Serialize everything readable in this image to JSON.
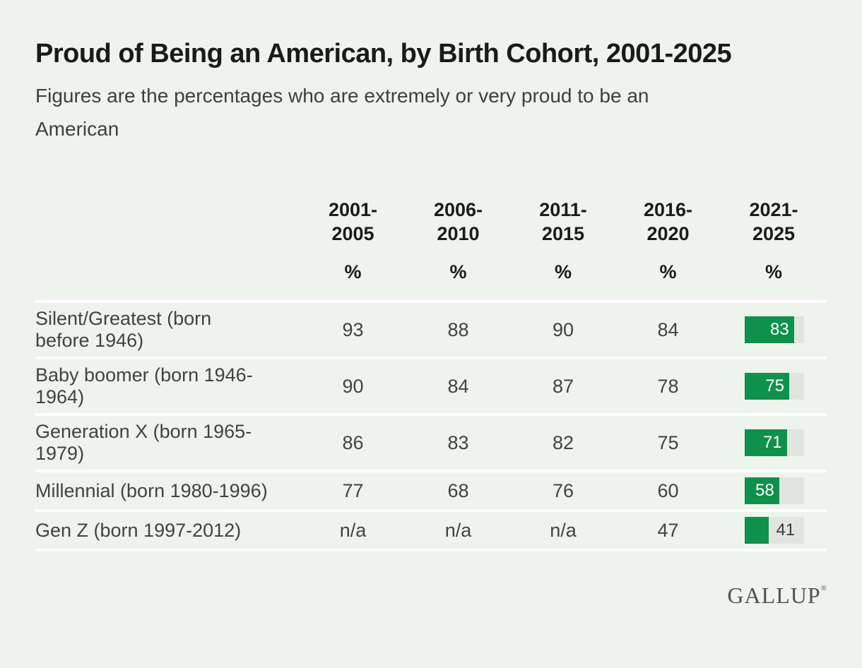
{
  "header": {
    "title": "Proud of Being an American, by Birth Cohort, 2001-2025",
    "subtitle_line1": "Figures are the percentages who are extremely or very proud to be an",
    "subtitle_line2": "American"
  },
  "table": {
    "columns": [
      "2001-\n2005",
      "2006-\n2010",
      "2011-\n2015",
      "2016-\n2020",
      "2021-\n2025"
    ],
    "unit": "%",
    "rows": [
      {
        "label": "Silent/Greatest (born\nbefore 1946)",
        "values": [
          "93",
          "88",
          "90",
          "84"
        ],
        "bar": 83
      },
      {
        "label": "Baby boomer (born 1946-\n1964)",
        "values": [
          "90",
          "84",
          "87",
          "78"
        ],
        "bar": 75
      },
      {
        "label": "Generation X (born 1965-\n1979)",
        "values": [
          "86",
          "83",
          "82",
          "75"
        ],
        "bar": 71
      },
      {
        "label": "Millennial (born 1980-1996)",
        "values": [
          "77",
          "68",
          "76",
          "60"
        ],
        "bar": 58
      },
      {
        "label": "Gen Z (born 1997-2012)",
        "values": [
          "n/a",
          "n/a",
          "n/a",
          "47"
        ],
        "bar": 41
      }
    ]
  },
  "footer": {
    "brand": "GALLUP",
    "registered": "®"
  },
  "colors": {
    "background": "#ecf4eb",
    "separator": "#ffffff",
    "bar_green": "#0f914c",
    "bar_track": "#e0e6dd"
  },
  "chart_data": {
    "type": "table",
    "title": "Proud of Being an American, by Birth Cohort, 2001-2025",
    "subtitle": "Figures are the percentages who are extremely or very proud to be an American",
    "unit": "%",
    "categories": [
      "2001-2005",
      "2006-2010",
      "2011-2015",
      "2016-2020",
      "2021-2025"
    ],
    "series": [
      {
        "name": "Silent/Greatest (born before 1946)",
        "values": [
          93,
          88,
          90,
          84,
          83
        ]
      },
      {
        "name": "Baby boomer (born 1946-1964)",
        "values": [
          90,
          84,
          87,
          78,
          75
        ]
      },
      {
        "name": "Generation X (born 1965-1979)",
        "values": [
          86,
          83,
          82,
          75,
          71
        ]
      },
      {
        "name": "Millennial (born 1980-1996)",
        "values": [
          77,
          68,
          76,
          60,
          58
        ]
      },
      {
        "name": "Gen Z (born 1997-2012)",
        "values": [
          null,
          null,
          null,
          47,
          41
        ]
      }
    ],
    "last_column_style": "inline-bar",
    "bar_axis_max": 100,
    "bar_color": "#0f914c",
    "source_brand": "GALLUP"
  }
}
